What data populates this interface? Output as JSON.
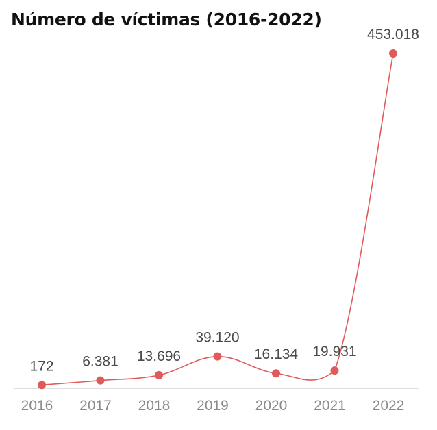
{
  "chart_data": {
    "type": "line",
    "title": "Número de víctimas (2016-2022)",
    "xlabel": "",
    "ylabel": "",
    "x": [
      "2016",
      "2017",
      "2018",
      "2019",
      "2020",
      "2021",
      "2022"
    ],
    "values": [
      172,
      6381,
      13696,
      39120,
      16134,
      19931,
      453018
    ],
    "value_labels": [
      "172",
      "6.381",
      "13.696",
      "39.120",
      "16.134",
      "19.931",
      "453.018"
    ],
    "ylim": [
      0,
      470000
    ],
    "grid": false,
    "legend": "none",
    "colors": {
      "line": "#e05a5a",
      "marker": "#e05a5a",
      "axis": "#cccccc"
    }
  }
}
